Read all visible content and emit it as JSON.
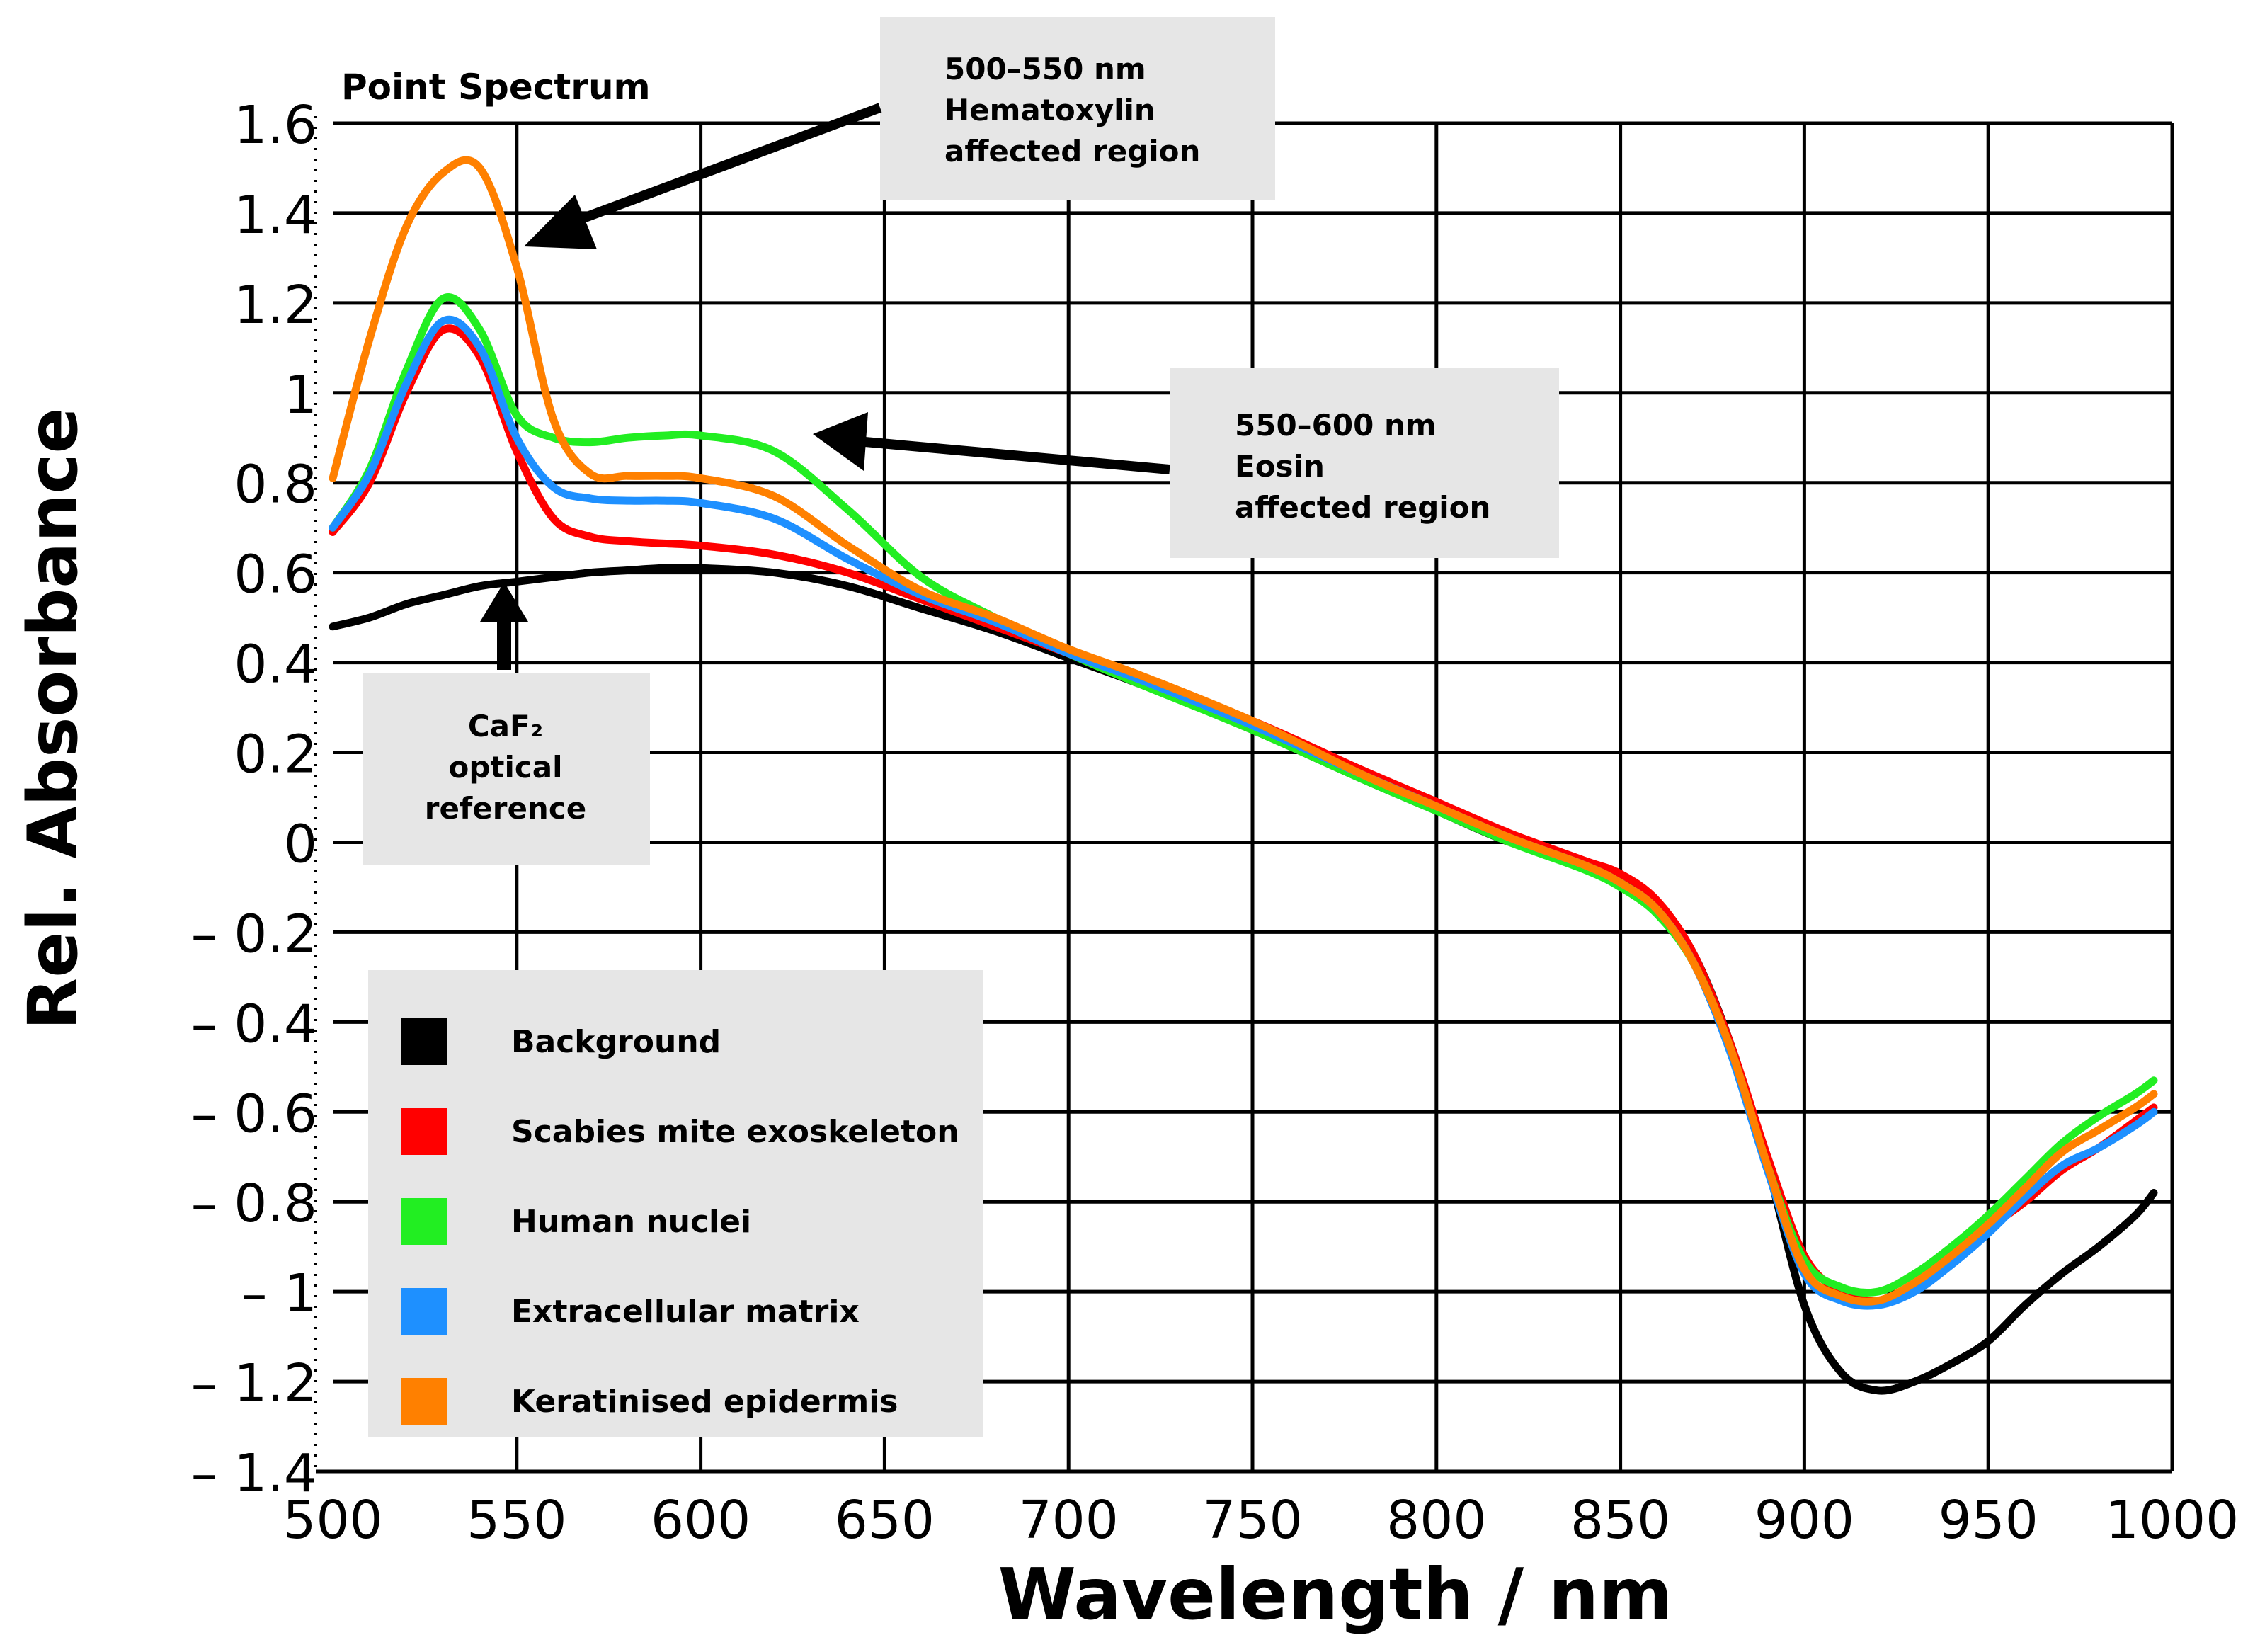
{
  "chart_data": {
    "type": "line",
    "title": "Point Spectrum",
    "xlabel": "Wavelength / nm",
    "ylabel": "Rel. Absorbance",
    "xlim": [
      500,
      1000
    ],
    "ylim": [
      -1.4,
      1.6
    ],
    "grid": true,
    "x_ticks": [
      500,
      550,
      600,
      650,
      700,
      750,
      800,
      850,
      900,
      950,
      1000
    ],
    "y_ticks": [
      1.6,
      1.4,
      1.2,
      1,
      0.8,
      0.6,
      0.4,
      0.2,
      0,
      -0.2,
      -0.4,
      -0.6,
      -0.8,
      -1,
      -1.2,
      -1.4
    ],
    "y_tick_labels": [
      "1.6",
      "1.4",
      "1.2",
      "1",
      "0.8",
      "0.6",
      "0.4",
      "0.2",
      "0",
      "– 0.2",
      "– 0.4",
      "– 0.6",
      "– 0.8",
      "– 1",
      "– 1.2",
      "– 1.4"
    ],
    "x": [
      500,
      510,
      520,
      530,
      540,
      550,
      560,
      570,
      580,
      590,
      600,
      620,
      640,
      660,
      680,
      700,
      720,
      750,
      780,
      800,
      820,
      840,
      850,
      860,
      870,
      880,
      890,
      900,
      910,
      920,
      930,
      940,
      950,
      960,
      970,
      980,
      990,
      995
    ],
    "series": [
      {
        "name": "Background",
        "color": "#000000",
        "values": [
          0.48,
          0.5,
          0.53,
          0.55,
          0.57,
          0.58,
          0.59,
          0.6,
          0.605,
          0.61,
          0.61,
          0.6,
          0.57,
          0.52,
          0.47,
          0.41,
          0.35,
          0.25,
          0.14,
          0.07,
          0.0,
          -0.05,
          -0.09,
          -0.14,
          -0.25,
          -0.45,
          -0.72,
          -1.03,
          -1.18,
          -1.22,
          -1.2,
          -1.16,
          -1.11,
          -1.03,
          -0.96,
          -0.9,
          -0.83,
          -0.78
        ]
      },
      {
        "name": "Scabies mite exoskeleton",
        "color": "#ff0000",
        "values": [
          0.69,
          0.8,
          1.0,
          1.14,
          1.08,
          0.87,
          0.72,
          0.68,
          0.67,
          0.665,
          0.66,
          0.64,
          0.6,
          0.54,
          0.48,
          0.42,
          0.36,
          0.27,
          0.16,
          0.09,
          0.02,
          -0.04,
          -0.07,
          -0.13,
          -0.25,
          -0.45,
          -0.7,
          -0.92,
          -1.0,
          -1.02,
          -0.99,
          -0.93,
          -0.86,
          -0.8,
          -0.73,
          -0.68,
          -0.62,
          -0.59
        ]
      },
      {
        "name": "Human nuclei",
        "color": "#22ee22",
        "values": [
          0.7,
          0.83,
          1.05,
          1.21,
          1.14,
          0.95,
          0.9,
          0.89,
          0.9,
          0.905,
          0.905,
          0.87,
          0.74,
          0.59,
          0.5,
          0.42,
          0.35,
          0.25,
          0.14,
          0.07,
          0.0,
          -0.06,
          -0.1,
          -0.16,
          -0.27,
          -0.46,
          -0.72,
          -0.93,
          -0.99,
          -1.0,
          -0.96,
          -0.9,
          -0.83,
          -0.75,
          -0.67,
          -0.61,
          -0.56,
          -0.53
        ]
      },
      {
        "name": "Extracellular matrix",
        "color": "#1e90ff",
        "values": [
          0.7,
          0.82,
          1.02,
          1.16,
          1.1,
          0.9,
          0.79,
          0.765,
          0.76,
          0.76,
          0.755,
          0.72,
          0.63,
          0.55,
          0.49,
          0.42,
          0.36,
          0.26,
          0.15,
          0.08,
          0.01,
          -0.05,
          -0.09,
          -0.15,
          -0.27,
          -0.47,
          -0.73,
          -0.96,
          -1.02,
          -1.03,
          -1.0,
          -0.94,
          -0.87,
          -0.79,
          -0.72,
          -0.68,
          -0.63,
          -0.6
        ]
      },
      {
        "name": "Keratinised epidermis",
        "color": "#ff8000",
        "values": [
          0.81,
          1.12,
          1.37,
          1.49,
          1.5,
          1.28,
          0.94,
          0.82,
          0.815,
          0.815,
          0.81,
          0.77,
          0.66,
          0.56,
          0.5,
          0.43,
          0.37,
          0.27,
          0.15,
          0.08,
          0.01,
          -0.05,
          -0.09,
          -0.15,
          -0.27,
          -0.46,
          -0.72,
          -0.95,
          -1.01,
          -1.02,
          -0.98,
          -0.92,
          -0.85,
          -0.77,
          -0.69,
          -0.64,
          -0.59,
          -0.56
        ]
      }
    ],
    "annotations": [
      {
        "lines": [
          "500–550 nm",
          "Hematoxylin",
          "affected region"
        ],
        "arrow": "points to orange peak near 550 nm"
      },
      {
        "lines": [
          "550–600 nm",
          "Eosin",
          "affected region"
        ],
        "arrow": "points to green plateau near 630 nm"
      },
      {
        "lines": [
          "CaF₂",
          "optical",
          "reference"
        ],
        "arrow": "points up to black curve near 550 nm"
      }
    ],
    "legend_position": "bottom-left"
  }
}
